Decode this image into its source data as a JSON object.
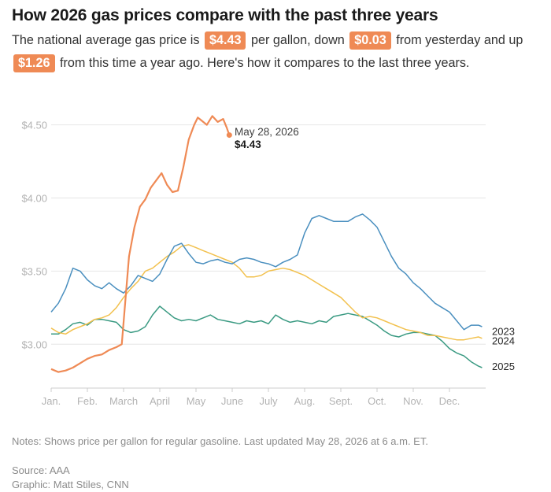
{
  "header": {
    "title": "How 2026 gas prices compare with the past three years",
    "sub_1": "The national average gas price is",
    "price": "$4.43",
    "sub_2": "per gallon, down",
    "change_day": "$0.03",
    "sub_3": "from yesterday and up",
    "change_year": "$1.26",
    "sub_4": "from this time a year ago. Here's how it compares to the last three years."
  },
  "footer": {
    "notes": "Notes: Shows price per gallon for regular gasoline. Last updated May 28, 2026 at 6 a.m. ET.",
    "source": "Source: AAA",
    "graphic": "Graphic: Matt Stiles, CNN"
  },
  "chart_data": {
    "type": "line",
    "title": "How 2026 gas prices compare with the past three years",
    "x_unit": "month of year (1 = Jan. 1, 13 = end of Dec.)",
    "xlim": [
      1,
      13
    ],
    "ylim": [
      2.7,
      4.6
    ],
    "y_ticks": [
      {
        "value": 3.0,
        "label": "$3.00"
      },
      {
        "value": 3.5,
        "label": "$3.50"
      },
      {
        "value": 4.0,
        "label": "$4.00"
      },
      {
        "value": 4.5,
        "label": "$4.50"
      }
    ],
    "x_ticks": [
      {
        "value": 1,
        "label": "Jan."
      },
      {
        "value": 2,
        "label": "Feb."
      },
      {
        "value": 3,
        "label": "March"
      },
      {
        "value": 4,
        "label": "April"
      },
      {
        "value": 5,
        "label": "May"
      },
      {
        "value": 6,
        "label": "June"
      },
      {
        "value": 7,
        "label": "July"
      },
      {
        "value": 8,
        "label": "Aug."
      },
      {
        "value": 9,
        "label": "Sept."
      },
      {
        "value": 10,
        "label": "Oct."
      },
      {
        "value": 11,
        "label": "Nov."
      },
      {
        "value": 12,
        "label": "Dec."
      }
    ],
    "grid": true,
    "colors": {
      "2023": "#4a8fbf",
      "2024": "#f2c14e",
      "2025": "#3a9a82",
      "2026": "#ef8a55",
      "grid": "#e6e6e6",
      "axis": "#cccccc"
    },
    "series": [
      {
        "name": "2023",
        "label": "2023",
        "x": [
          1.0,
          1.2,
          1.4,
          1.6,
          1.8,
          2.0,
          2.2,
          2.4,
          2.6,
          2.8,
          3.0,
          3.2,
          3.4,
          3.6,
          3.8,
          4.0,
          4.2,
          4.4,
          4.6,
          4.8,
          5.0,
          5.2,
          5.4,
          5.6,
          5.8,
          6.0,
          6.2,
          6.4,
          6.6,
          6.8,
          7.0,
          7.2,
          7.4,
          7.6,
          7.8,
          8.0,
          8.2,
          8.4,
          8.6,
          8.8,
          9.0,
          9.2,
          9.4,
          9.6,
          9.8,
          10.0,
          10.2,
          10.4,
          10.6,
          10.8,
          11.0,
          11.2,
          11.4,
          11.6,
          11.8,
          12.0,
          12.2,
          12.4,
          12.6,
          12.8,
          12.9
        ],
        "values": [
          3.22,
          3.28,
          3.38,
          3.52,
          3.5,
          3.44,
          3.4,
          3.38,
          3.42,
          3.38,
          3.35,
          3.4,
          3.47,
          3.45,
          3.43,
          3.48,
          3.58,
          3.67,
          3.69,
          3.62,
          3.56,
          3.55,
          3.57,
          3.58,
          3.56,
          3.55,
          3.58,
          3.59,
          3.58,
          3.56,
          3.55,
          3.53,
          3.56,
          3.58,
          3.61,
          3.76,
          3.86,
          3.88,
          3.86,
          3.84,
          3.84,
          3.84,
          3.87,
          3.89,
          3.85,
          3.8,
          3.7,
          3.6,
          3.52,
          3.48,
          3.42,
          3.38,
          3.33,
          3.28,
          3.25,
          3.22,
          3.16,
          3.1,
          3.13,
          3.13,
          3.12
        ]
      },
      {
        "name": "2024",
        "label": "2024",
        "x": [
          1.0,
          1.2,
          1.4,
          1.6,
          1.8,
          2.0,
          2.2,
          2.4,
          2.6,
          2.8,
          3.0,
          3.2,
          3.4,
          3.6,
          3.8,
          4.0,
          4.2,
          4.4,
          4.6,
          4.8,
          5.0,
          5.2,
          5.4,
          5.6,
          5.8,
          6.0,
          6.2,
          6.4,
          6.6,
          6.8,
          7.0,
          7.2,
          7.4,
          7.6,
          7.8,
          8.0,
          8.2,
          8.4,
          8.6,
          8.8,
          9.0,
          9.2,
          9.4,
          9.6,
          9.8,
          10.0,
          10.2,
          10.4,
          10.6,
          10.8,
          11.0,
          11.2,
          11.4,
          11.6,
          11.8,
          12.0,
          12.2,
          12.4,
          12.6,
          12.8,
          12.9
        ],
        "values": [
          3.11,
          3.08,
          3.07,
          3.1,
          3.12,
          3.14,
          3.17,
          3.18,
          3.2,
          3.25,
          3.32,
          3.38,
          3.43,
          3.5,
          3.52,
          3.56,
          3.6,
          3.63,
          3.67,
          3.68,
          3.66,
          3.64,
          3.62,
          3.6,
          3.58,
          3.56,
          3.52,
          3.46,
          3.46,
          3.47,
          3.5,
          3.51,
          3.52,
          3.51,
          3.49,
          3.47,
          3.44,
          3.41,
          3.38,
          3.35,
          3.32,
          3.27,
          3.22,
          3.18,
          3.19,
          3.18,
          3.16,
          3.14,
          3.12,
          3.1,
          3.09,
          3.08,
          3.06,
          3.06,
          3.05,
          3.04,
          3.03,
          3.03,
          3.04,
          3.05,
          3.04
        ]
      },
      {
        "name": "2025",
        "label": "2025",
        "x": [
          1.0,
          1.2,
          1.4,
          1.6,
          1.8,
          2.0,
          2.2,
          2.4,
          2.6,
          2.8,
          3.0,
          3.2,
          3.4,
          3.6,
          3.8,
          4.0,
          4.2,
          4.4,
          4.6,
          4.8,
          5.0,
          5.2,
          5.4,
          5.6,
          5.8,
          6.0,
          6.2,
          6.4,
          6.6,
          6.8,
          7.0,
          7.2,
          7.4,
          7.6,
          7.8,
          8.0,
          8.2,
          8.4,
          8.6,
          8.8,
          9.0,
          9.2,
          9.4,
          9.6,
          9.8,
          10.0,
          10.2,
          10.4,
          10.6,
          10.8,
          11.0,
          11.2,
          11.4,
          11.6,
          11.8,
          12.0,
          12.2,
          12.4,
          12.6,
          12.8,
          12.9
        ],
        "values": [
          3.07,
          3.07,
          3.1,
          3.14,
          3.15,
          3.13,
          3.17,
          3.17,
          3.16,
          3.15,
          3.1,
          3.08,
          3.09,
          3.12,
          3.2,
          3.26,
          3.22,
          3.18,
          3.16,
          3.17,
          3.16,
          3.18,
          3.2,
          3.17,
          3.16,
          3.15,
          3.14,
          3.16,
          3.15,
          3.16,
          3.14,
          3.2,
          3.17,
          3.15,
          3.16,
          3.15,
          3.14,
          3.16,
          3.15,
          3.19,
          3.2,
          3.21,
          3.2,
          3.19,
          3.16,
          3.13,
          3.09,
          3.06,
          3.05,
          3.07,
          3.08,
          3.08,
          3.07,
          3.06,
          3.02,
          2.97,
          2.94,
          2.92,
          2.88,
          2.85,
          2.84
        ]
      },
      {
        "name": "2026",
        "label": "",
        "x": [
          1.0,
          1.2,
          1.4,
          1.6,
          1.8,
          2.0,
          2.2,
          2.4,
          2.6,
          2.8,
          2.95,
          3.05,
          3.15,
          3.3,
          3.45,
          3.6,
          3.75,
          3.9,
          4.05,
          4.2,
          4.35,
          4.5,
          4.65,
          4.8,
          4.95,
          5.05,
          5.15,
          5.3,
          5.45,
          5.6,
          5.75,
          5.85,
          5.92
        ],
        "values": [
          2.83,
          2.81,
          2.82,
          2.84,
          2.87,
          2.9,
          2.92,
          2.93,
          2.96,
          2.98,
          3.0,
          3.3,
          3.6,
          3.8,
          3.94,
          3.99,
          4.07,
          4.12,
          4.17,
          4.09,
          4.04,
          4.05,
          4.21,
          4.4,
          4.5,
          4.55,
          4.53,
          4.5,
          4.56,
          4.52,
          4.54,
          4.48,
          4.43
        ]
      }
    ],
    "annotation": {
      "date": "May 28, 2026",
      "value": "$4.43",
      "x": 5.92,
      "y": 4.43
    }
  }
}
